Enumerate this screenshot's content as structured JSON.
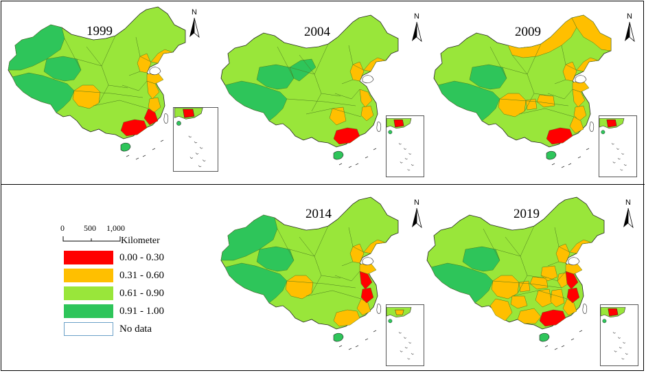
{
  "map_data": {
    "years": [
      "1999",
      "2004",
      "2009",
      "2014",
      "2019"
    ],
    "north_label": "N",
    "legend": {
      "scale_ticks": [
        "0",
        "500",
        "1,000"
      ],
      "scale_unit": "Kilometer",
      "classes": [
        {
          "label": "0.00 - 0.30",
          "color": "#ff0000"
        },
        {
          "label": "0.31 - 0.60",
          "color": "#ffbf00"
        },
        {
          "label": "0.61 - 0.90",
          "color": "#99e63a"
        },
        {
          "label": "0.91 - 1.00",
          "color": "#2ec55a"
        },
        {
          "label": "No data",
          "color": "#ffffff"
        }
      ]
    },
    "colors": {
      "base": "#99e63a",
      "high": "#2ec55a",
      "mid": "#ffbf00",
      "low": "#ff0000",
      "boundary": "#4a7a1e"
    }
  }
}
